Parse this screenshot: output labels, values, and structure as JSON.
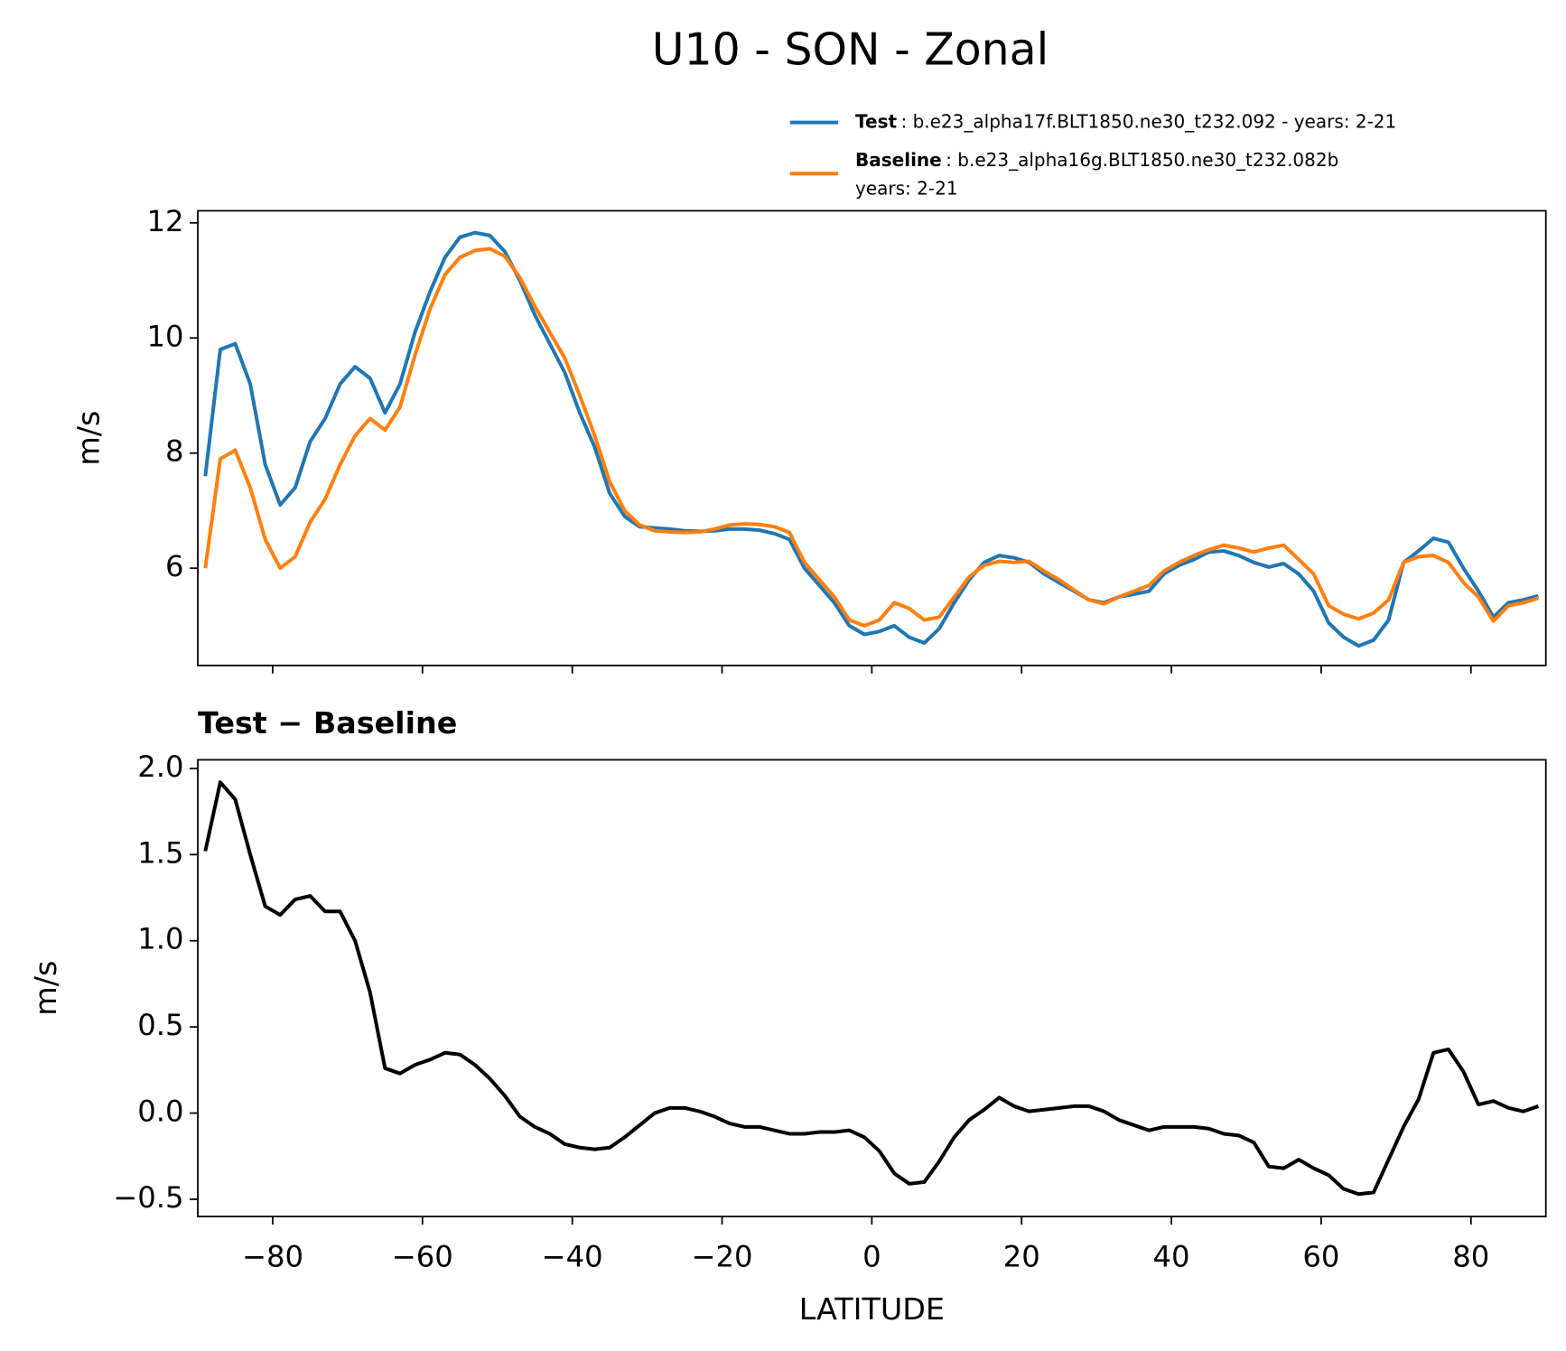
{
  "title": "U10 - SON - Zonal",
  "chart_data": [
    {
      "type": "line",
      "ylabel": "m/s",
      "x": [
        -89,
        -87,
        -85,
        -83,
        -81,
        -79,
        -77,
        -75,
        -73,
        -71,
        -69,
        -67,
        -65,
        -63,
        -61,
        -59,
        -57,
        -55,
        -53,
        -51,
        -49,
        -47,
        -45,
        -43,
        -41,
        -39,
        -37,
        -35,
        -33,
        -31,
        -29,
        -27,
        -25,
        -23,
        -21,
        -19,
        -17,
        -15,
        -13,
        -11,
        -9,
        -7,
        -5,
        -3,
        -1,
        1,
        3,
        5,
        7,
        9,
        11,
        13,
        15,
        17,
        19,
        21,
        23,
        25,
        27,
        29,
        31,
        33,
        35,
        37,
        39,
        41,
        43,
        45,
        47,
        49,
        51,
        53,
        55,
        57,
        59,
        61,
        63,
        65,
        67,
        69,
        71,
        73,
        75,
        77,
        79,
        81,
        83,
        85,
        87,
        89
      ],
      "series": [
        {
          "name": "Test",
          "label_lines": [
            ": b.e23_alpha17f.BLT1850.ne30_t232.092 - years: 2-21"
          ],
          "color": "#1f77b4",
          "values": [
            7.6,
            9.8,
            9.9,
            9.2,
            7.8,
            7.1,
            7.4,
            8.2,
            8.6,
            9.2,
            9.5,
            9.3,
            8.7,
            9.2,
            10.1,
            10.8,
            11.4,
            11.75,
            11.83,
            11.78,
            11.5,
            11.0,
            10.4,
            9.9,
            9.4,
            8.7,
            8.1,
            7.3,
            6.9,
            6.72,
            6.7,
            6.68,
            6.65,
            6.64,
            6.65,
            6.68,
            6.68,
            6.66,
            6.6,
            6.5,
            6.0,
            5.7,
            5.4,
            5.0,
            4.85,
            4.9,
            5.0,
            4.8,
            4.7,
            4.95,
            5.4,
            5.8,
            6.1,
            6.22,
            6.18,
            6.1,
            5.9,
            5.75,
            5.6,
            5.45,
            5.4,
            5.5,
            5.55,
            5.6,
            5.9,
            6.05,
            6.15,
            6.28,
            6.3,
            6.22,
            6.1,
            6.02,
            6.08,
            5.9,
            5.6,
            5.05,
            4.8,
            4.65,
            4.75,
            5.1,
            6.1,
            6.3,
            6.52,
            6.45,
            6.0,
            5.6,
            5.15,
            5.4,
            5.45,
            5.52
          ]
        },
        {
          "name": "Baseline",
          "label_lines": [
            ": b.e23_alpha16g.BLT1850.ne30_t232.082b",
            "years: 2-21"
          ],
          "color": "#ff7f0e",
          "values": [
            6.0,
            7.9,
            8.05,
            7.4,
            6.5,
            6.0,
            6.2,
            6.8,
            7.2,
            7.8,
            8.3,
            8.6,
            8.4,
            8.8,
            9.7,
            10.5,
            11.1,
            11.4,
            11.52,
            11.55,
            11.42,
            11.05,
            10.55,
            10.1,
            9.65,
            9.0,
            8.3,
            7.5,
            7.0,
            6.75,
            6.65,
            6.63,
            6.62,
            6.63,
            6.68,
            6.75,
            6.77,
            6.76,
            6.72,
            6.62,
            6.1,
            5.8,
            5.5,
            5.1,
            5.0,
            5.1,
            5.4,
            5.3,
            5.1,
            5.15,
            5.5,
            5.85,
            6.05,
            6.12,
            6.1,
            6.12,
            5.95,
            5.8,
            5.62,
            5.45,
            5.38,
            5.5,
            5.6,
            5.7,
            5.95,
            6.1,
            6.22,
            6.32,
            6.4,
            6.35,
            6.28,
            6.35,
            6.4,
            6.15,
            5.9,
            5.35,
            5.2,
            5.12,
            5.22,
            5.45,
            6.1,
            6.2,
            6.22,
            6.1,
            5.75,
            5.5,
            5.08,
            5.35,
            5.4,
            5.48
          ]
        }
      ],
      "xlim": [
        -90,
        90
      ],
      "xticks": [
        -80,
        -60,
        -40,
        -20,
        0,
        20,
        40,
        60,
        80
      ],
      "xticklabels": false,
      "ylim": [
        4.31,
        12.21
      ],
      "yticks": [
        6,
        8,
        10,
        12
      ],
      "legend": "upper right"
    },
    {
      "type": "line",
      "subtitle": "Test − Baseline",
      "ylabel": "m/s",
      "xlabel": "LATITUDE",
      "x": [
        -89,
        -87,
        -85,
        -83,
        -81,
        -79,
        -77,
        -75,
        -73,
        -71,
        -69,
        -67,
        -65,
        -63,
        -61,
        -59,
        -57,
        -55,
        -53,
        -51,
        -49,
        -47,
        -45,
        -43,
        -41,
        -39,
        -37,
        -35,
        -33,
        -31,
        -29,
        -27,
        -25,
        -23,
        -21,
        -19,
        -17,
        -15,
        -13,
        -11,
        -9,
        -7,
        -5,
        -3,
        -1,
        1,
        3,
        5,
        7,
        9,
        11,
        13,
        15,
        17,
        19,
        21,
        23,
        25,
        27,
        29,
        31,
        33,
        35,
        37,
        39,
        41,
        43,
        45,
        47,
        49,
        51,
        53,
        55,
        57,
        59,
        61,
        63,
        65,
        67,
        69,
        71,
        73,
        75,
        77,
        79,
        81,
        83,
        85,
        87,
        89
      ],
      "series": [
        {
          "color": "#000000",
          "values": [
            1.52,
            1.92,
            1.82,
            1.5,
            1.2,
            1.15,
            1.24,
            1.26,
            1.17,
            1.17,
            1.0,
            0.7,
            0.26,
            0.23,
            0.28,
            0.31,
            0.35,
            0.34,
            0.28,
            0.2,
            0.1,
            -0.02,
            -0.08,
            -0.12,
            -0.18,
            -0.2,
            -0.21,
            -0.2,
            -0.14,
            -0.07,
            0.0,
            0.03,
            0.03,
            0.01,
            -0.02,
            -0.06,
            -0.08,
            -0.08,
            -0.1,
            -0.12,
            -0.12,
            -0.11,
            -0.11,
            -0.1,
            -0.14,
            -0.22,
            -0.35,
            -0.41,
            -0.4,
            -0.28,
            -0.14,
            -0.04,
            0.02,
            0.09,
            0.04,
            0.01,
            0.02,
            0.03,
            0.04,
            0.04,
            0.01,
            -0.04,
            -0.07,
            -0.1,
            -0.08,
            -0.08,
            -0.08,
            -0.09,
            -0.12,
            -0.13,
            -0.17,
            -0.31,
            -0.32,
            -0.27,
            -0.32,
            -0.36,
            -0.44,
            -0.47,
            -0.46,
            -0.27,
            -0.08,
            0.08,
            0.35,
            0.37,
            0.24,
            0.05,
            0.07,
            0.03,
            0.01,
            0.04
          ]
        }
      ],
      "xlim": [
        -90,
        90
      ],
      "xticks": [
        {
          "value": -80,
          "label": "−80"
        },
        {
          "value": -60,
          "label": "−60"
        },
        {
          "value": -40,
          "label": "−40"
        },
        {
          "value": -20,
          "label": "−20"
        },
        0,
        20,
        40,
        60,
        80
      ],
      "ylim": [
        -0.6,
        2.05
      ],
      "yticks": [
        {
          "value": 2,
          "label": "2.0"
        },
        1.5,
        {
          "value": 1,
          "label": "1.0"
        },
        0.5,
        {
          "value": 0,
          "label": "0.0"
        },
        {
          "value": -0.5,
          "label": "−0.5"
        }
      ]
    }
  ]
}
